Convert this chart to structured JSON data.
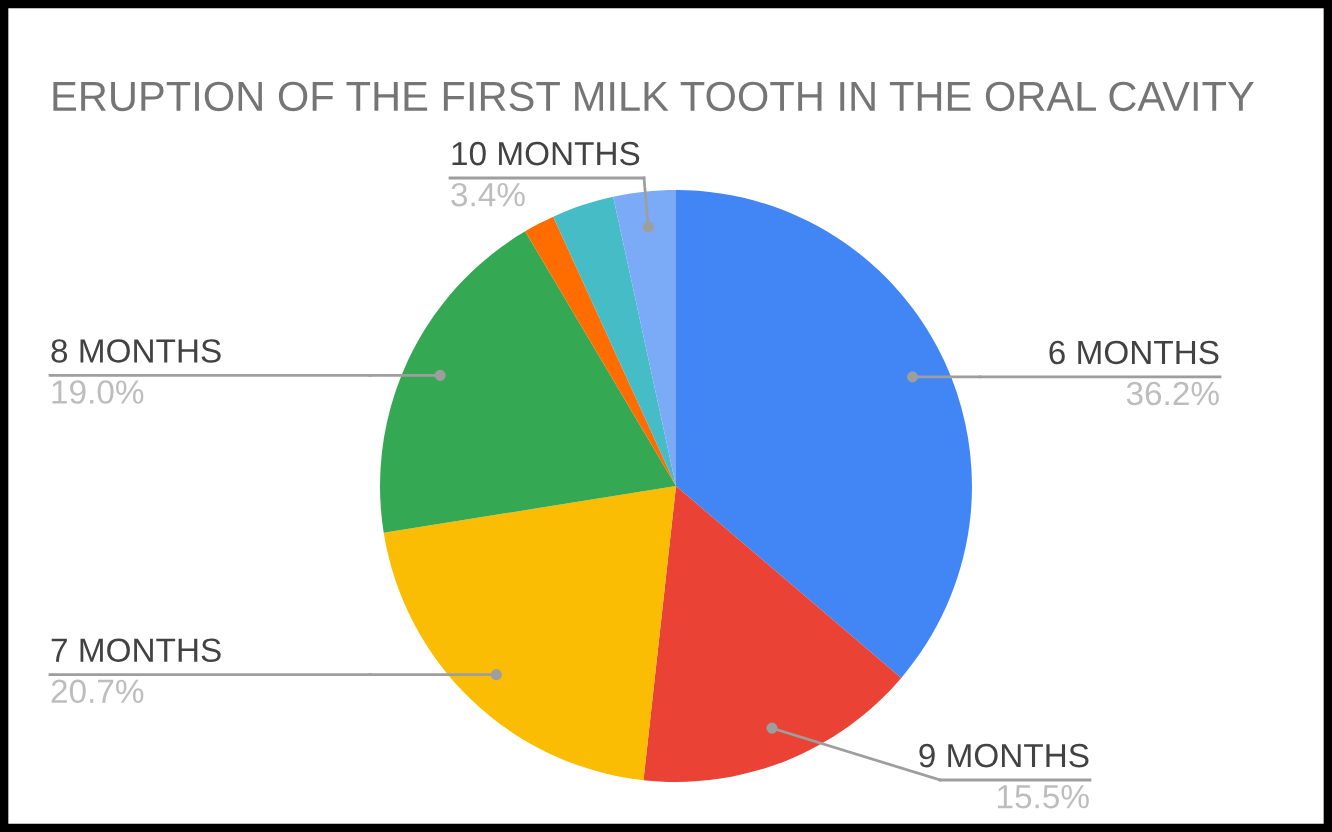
{
  "chart_data": {
    "type": "pie",
    "title": "ERUPTION OF THE FIRST MILK TOOTH IN THE ORAL CAVITY",
    "categories": [
      "6 MONTHS",
      "9 MONTHS",
      "7 MONTHS",
      "8 MONTHS",
      null,
      null,
      "10 MONTHS"
    ],
    "values": [
      36.2,
      15.5,
      20.7,
      19.0,
      1.7,
      3.4,
      3.4
    ],
    "colors": [
      "#4285f4",
      "#ea4335",
      "#fbbc04",
      "#34a853",
      "#ff6d01",
      "#46bdc6",
      "#7baaf7"
    ],
    "value_labels": [
      "36.2%",
      "15.5%",
      "20.7%",
      "19.0%",
      null,
      null,
      "3.4%"
    ],
    "legend": false
  }
}
